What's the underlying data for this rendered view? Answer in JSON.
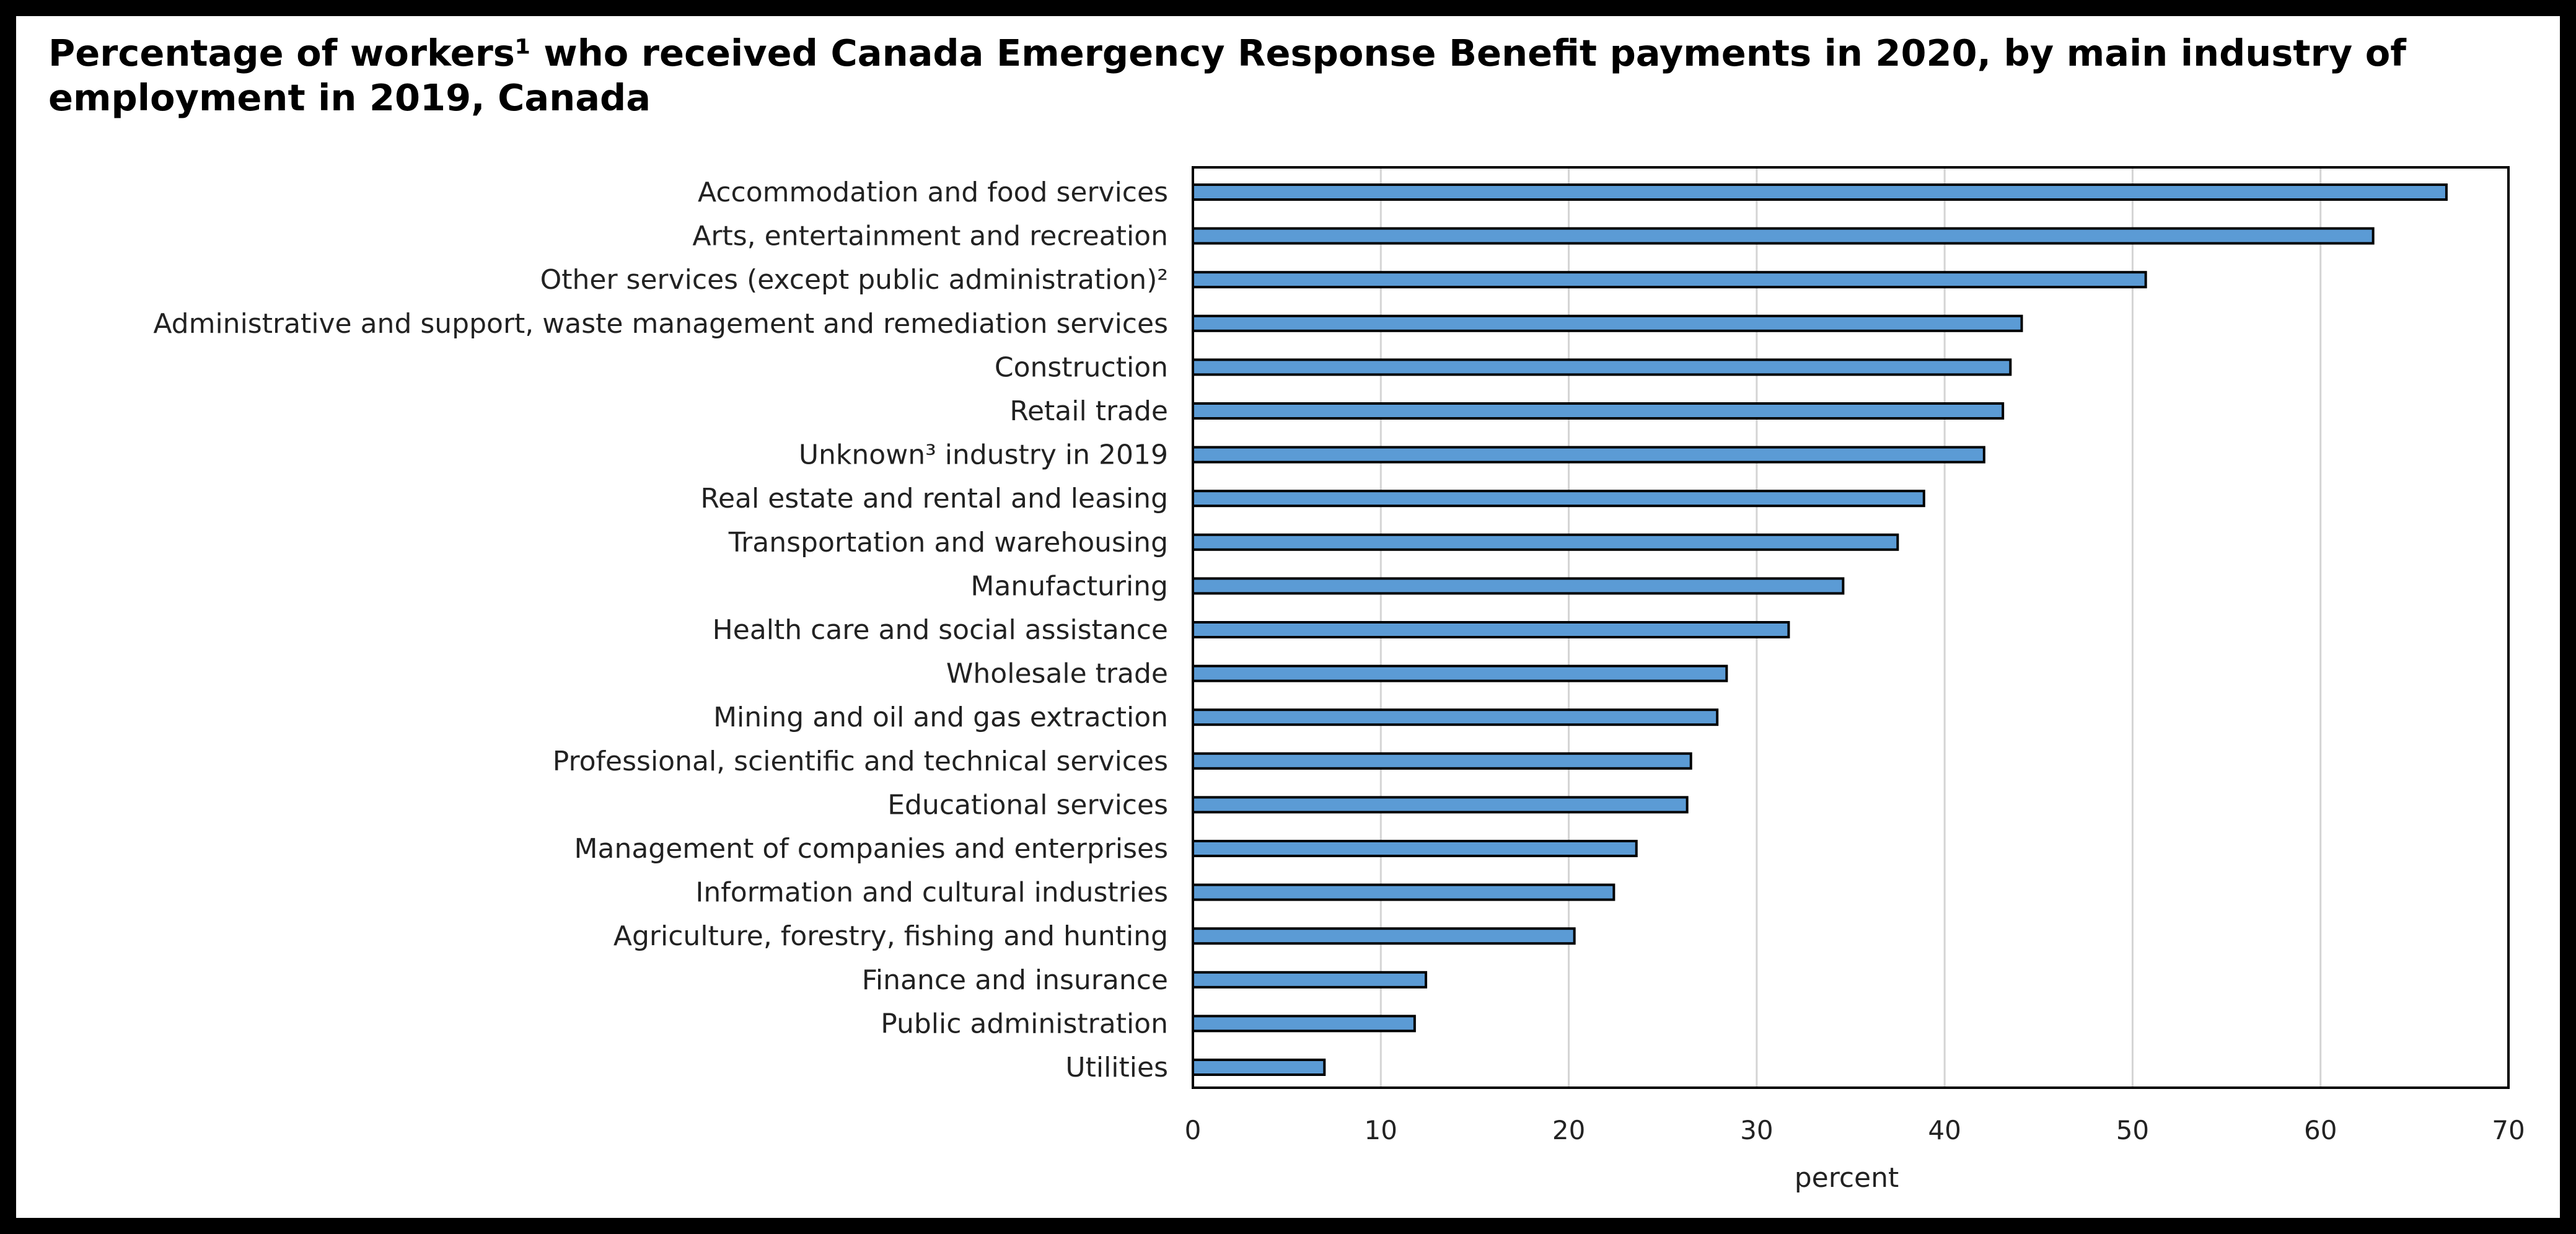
{
  "colors": {
    "bar_fill": "#5b9bd5",
    "bar_stroke": "#000000",
    "grid": "#d4d4d4",
    "frame": "#000000"
  },
  "chart_data": {
    "type": "bar",
    "orientation": "horizontal",
    "title": "Percentage of workers¹ who received Canada Emergency Response Benefit payments in 2020, by main industry of employment in 2019, Canada",
    "xlabel": "percent",
    "ylabel": "",
    "xlim": [
      0,
      70
    ],
    "xticks": [
      0,
      10,
      20,
      30,
      40,
      50,
      60,
      70
    ],
    "grid": true,
    "categories": [
      "Accommodation and food services",
      "Arts, entertainment and recreation",
      "Other services (except public administration)²",
      "Administrative and support, waste management and remediation services",
      "Construction",
      "Retail trade",
      "Unknown³ industry in 2019",
      "Real estate and rental and leasing",
      "Transportation and warehousing",
      "Manufacturing",
      "Health care and social assistance",
      "Wholesale trade",
      "Mining and oil and gas extraction",
      "Professional, scientific and technical services",
      "Educational services",
      "Management of companies and enterprises",
      "Information and cultural industries",
      "Agriculture, forestry, fishing and hunting",
      "Finance and insurance",
      "Public administration",
      "Utilities"
    ],
    "values": [
      66.7,
      62.8,
      50.7,
      44.1,
      43.5,
      43.1,
      42.1,
      38.9,
      37.5,
      34.6,
      31.7,
      28.4,
      27.9,
      26.5,
      26.3,
      23.6,
      22.4,
      20.3,
      12.4,
      11.8,
      7.0
    ]
  }
}
